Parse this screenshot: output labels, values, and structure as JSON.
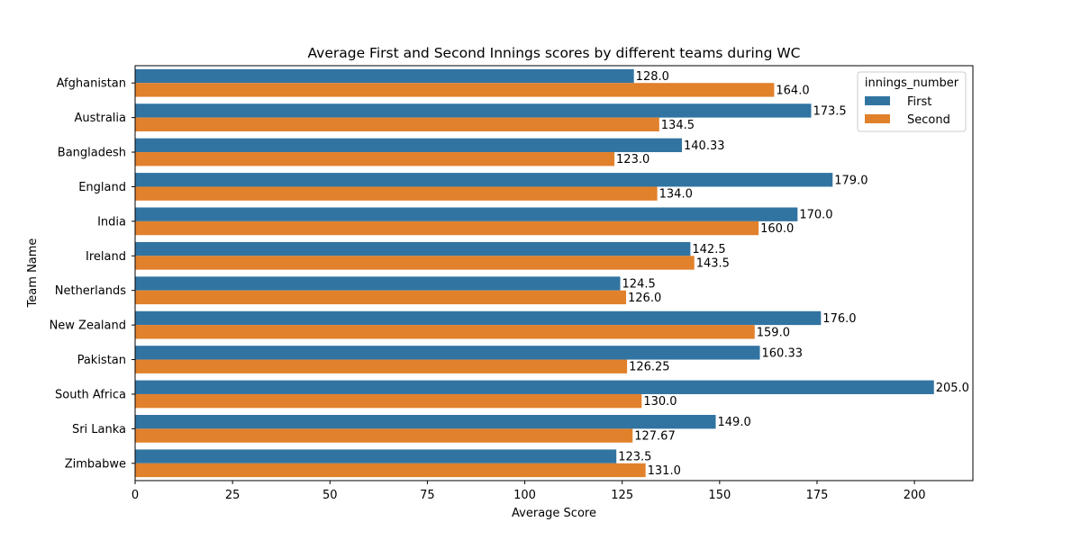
{
  "chart_data": {
    "type": "bar",
    "orientation": "horizontal",
    "title": "Average First and Second Innings scores by different teams during WC",
    "xlabel": "Average Score",
    "ylabel": "Team Name",
    "xlim": [
      0,
      215
    ],
    "xticks": [
      0,
      25,
      50,
      75,
      100,
      125,
      150,
      175,
      200
    ],
    "grid": false,
    "legend": {
      "title": "innings_number",
      "placement": "top-right"
    },
    "categories": [
      "Afghanistan",
      "Australia",
      "Bangladesh",
      "England",
      "India",
      "Ireland",
      "Netherlands",
      "New Zealand",
      "Pakistan",
      "South Africa",
      "Sri Lanka",
      "Zimbabwe"
    ],
    "series": [
      {
        "name": "First",
        "color": "#3274a1",
        "values": [
          128.0,
          173.5,
          140.33,
          179.0,
          170.0,
          142.5,
          124.5,
          176.0,
          160.33,
          205.0,
          149.0,
          123.5
        ],
        "labels": [
          "128.0",
          "173.5",
          "140.33",
          "179.0",
          "170.0",
          "142.5",
          "124.5",
          "176.0",
          "160.33",
          "205.0",
          "149.0",
          "123.5"
        ]
      },
      {
        "name": "Second",
        "color": "#e1812c",
        "values": [
          164.0,
          134.5,
          123.0,
          134.0,
          160.0,
          143.5,
          126.0,
          159.0,
          126.25,
          130.0,
          127.67,
          131.0
        ],
        "labels": [
          "164.0",
          "134.5",
          "123.0",
          "134.0",
          "160.0",
          "143.5",
          "126.0",
          "159.0",
          "126.25",
          "130.0",
          "127.67",
          "131.0"
        ]
      }
    ]
  }
}
